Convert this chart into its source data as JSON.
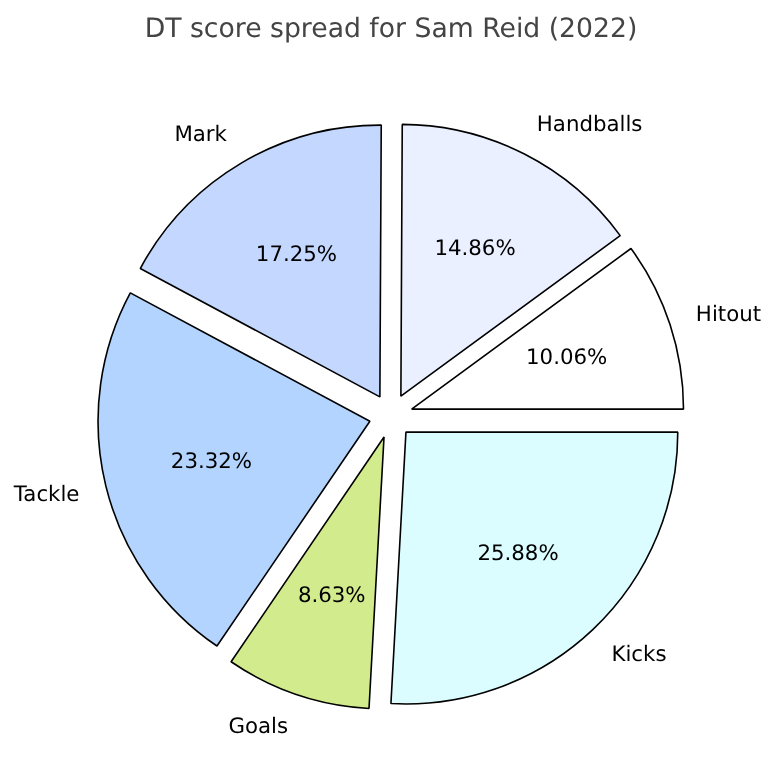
{
  "chart_data": {
    "type": "pie",
    "title": "DT score spread for Sam Reid (2022)",
    "categories": [
      "Hitout",
      "Handballs",
      "Mark",
      "Tackle",
      "Goals",
      "Kicks"
    ],
    "values": [
      10.06,
      14.86,
      17.25,
      23.32,
      8.63,
      25.88
    ],
    "value_labels": [
      "10.06%",
      "14.86%",
      "17.25%",
      "23.32%",
      "8.63%",
      "25.88%"
    ],
    "colors": [
      "#ffffff",
      "#eaf0ff",
      "#c4d7ff",
      "#b3d4ff",
      "#d2eb8c",
      "#dbfdff"
    ],
    "legend": false
  }
}
